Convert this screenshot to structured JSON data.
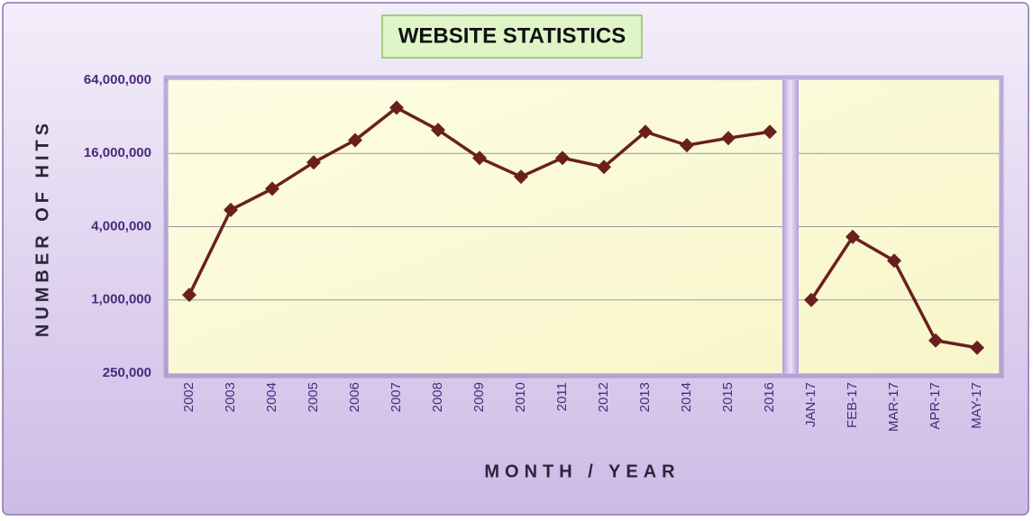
{
  "chart_data": {
    "type": "line",
    "title": "WEBSITE STATISTICS",
    "x_label": "MONTH / YEAR",
    "y_label": "NUMBER OF HITS",
    "y_scale": "log",
    "grid": true,
    "color": "#6a1f1f",
    "categories": [
      "2002",
      "2003",
      "2004",
      "2005",
      "2006",
      "2007",
      "2008",
      "2009",
      "2010",
      "2011",
      "2012",
      "2013",
      "2014",
      "2015",
      "2016",
      null,
      "JAN-17",
      "FEB-17",
      "MAR-17",
      "APR-17",
      "MAY-17"
    ],
    "values": [
      1100000,
      5500000,
      8200000,
      13500000,
      20600000,
      38000000,
      25000000,
      14700000,
      10300000,
      14700000,
      12400000,
      24100000,
      18700000,
      21400000,
      24100000,
      null,
      1000000,
      3300000,
      2100000,
      464000,
      405000
    ],
    "ylim": [
      250000,
      64000000
    ],
    "yticks": [
      {
        "value": 250000,
        "label": "250,000"
      },
      {
        "value": 1000000,
        "label": "1,000,000"
      },
      {
        "value": 4000000,
        "label": "4,000,000"
      },
      {
        "value": 16000000,
        "label": "16,000,000"
      },
      {
        "value": 64000000,
        "label": "64,000,000"
      }
    ]
  }
}
